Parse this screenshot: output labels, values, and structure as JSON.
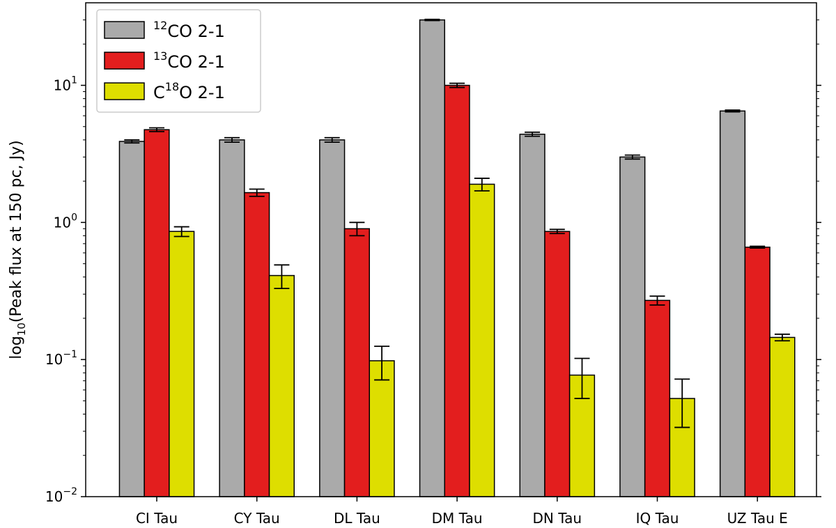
{
  "chart_data": {
    "type": "bar",
    "categories": [
      "CI Tau",
      "CY Tau",
      "DL Tau",
      "DM Tau",
      "DN Tau",
      "IQ Tau",
      "UZ Tau E"
    ],
    "ylabel": {
      "prefix": "log",
      "subscript": "10",
      "rest": "(Peak flux at 150 pc, Jy)"
    },
    "yscale": "log",
    "ylim": [
      0.01,
      40
    ],
    "yticks": [
      {
        "value": 0.01,
        "base": "10",
        "exp": "−2"
      },
      {
        "value": 0.1,
        "base": "10",
        "exp": "−1"
      },
      {
        "value": 1,
        "base": "10",
        "exp": "0"
      },
      {
        "value": 10,
        "base": "10",
        "exp": "1"
      }
    ],
    "legend_position": "top-left",
    "series": [
      {
        "name": "12CO 2-1",
        "legend": {
          "pre": "",
          "sup": "12",
          "post": "CO 2-1"
        },
        "color": "#aaaaaa",
        "values": [
          3.9,
          4.0,
          4.0,
          30.0,
          4.4,
          3.0,
          6.5
        ],
        "err": [
          0.1,
          0.15,
          0.15,
          0.3,
          0.15,
          0.1,
          0.1
        ]
      },
      {
        "name": "13CO 2-1",
        "legend": {
          "pre": "",
          "sup": "13",
          "post": "CO 2-1"
        },
        "color": "#e31e1e",
        "values": [
          4.75,
          1.65,
          0.9,
          10.0,
          0.86,
          0.27,
          0.66
        ],
        "err": [
          0.15,
          0.1,
          0.1,
          0.35,
          0.03,
          0.02,
          0.01
        ]
      },
      {
        "name": "C18O 2-1",
        "legend": {
          "pre": "C",
          "sup": "18",
          "post": "O 2-1"
        },
        "color": "#dede00",
        "values": [
          0.86,
          0.41,
          0.098,
          1.9,
          0.077,
          0.052,
          0.145
        ],
        "err": [
          0.07,
          0.08,
          0.027,
          0.2,
          0.025,
          0.02,
          0.008
        ]
      }
    ]
  }
}
